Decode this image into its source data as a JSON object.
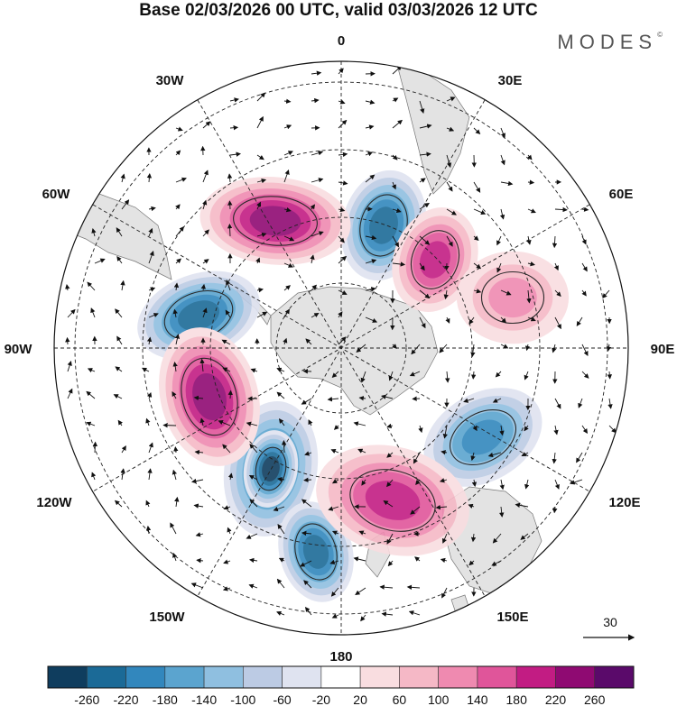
{
  "title": "Base 02/03/2026 00 UTC, valid 03/03/2026 12 UTC",
  "logo": "MODES",
  "logo_mark": "©",
  "longitude_labels": [
    "0",
    "30E",
    "60E",
    "90E",
    "120E",
    "150E",
    "180",
    "150W",
    "120W",
    "90W",
    "60W",
    "30W"
  ],
  "wind_reference": {
    "value": "30"
  },
  "colorbar": {
    "ticks": [
      "-260",
      "-220",
      "-180",
      "-140",
      "-100",
      "-60",
      "-20",
      "20",
      "60",
      "100",
      "140",
      "180",
      "220",
      "260"
    ],
    "colors": [
      "#0f3d5e",
      "#1b6a97",
      "#3287bd",
      "#5ba4cf",
      "#8fbfe0",
      "#bccbe4",
      "#dfe3f0",
      "#ffffff",
      "#f9dde0",
      "#f5b8c6",
      "#ef8ab0",
      "#e0559a",
      "#c21c83",
      "#8f0a72",
      "#5a0a6a"
    ]
  },
  "anomalies": [
    {
      "name": "anomaly-low-southeast-pacific",
      "value": -230
    },
    {
      "name": "anomaly-low-ross-sea",
      "value": -200
    },
    {
      "name": "anomaly-low-weddell-east",
      "value": -200
    },
    {
      "name": "anomaly-low-indian-ocean",
      "value": -160
    },
    {
      "name": "anomaly-low-south-pacific",
      "value": -260
    },
    {
      "name": "anomaly-low-pacific-north",
      "value": -200
    },
    {
      "name": "anomaly-high-south-atlantic",
      "value": 200
    },
    {
      "name": "anomaly-high-bellingshausen",
      "value": 220
    },
    {
      "name": "anomaly-high-indian-ocean",
      "value": 180
    },
    {
      "name": "anomaly-high-tasman-sea",
      "value": 160
    },
    {
      "name": "anomaly-high-southern-indian",
      "value": 100
    }
  ]
}
